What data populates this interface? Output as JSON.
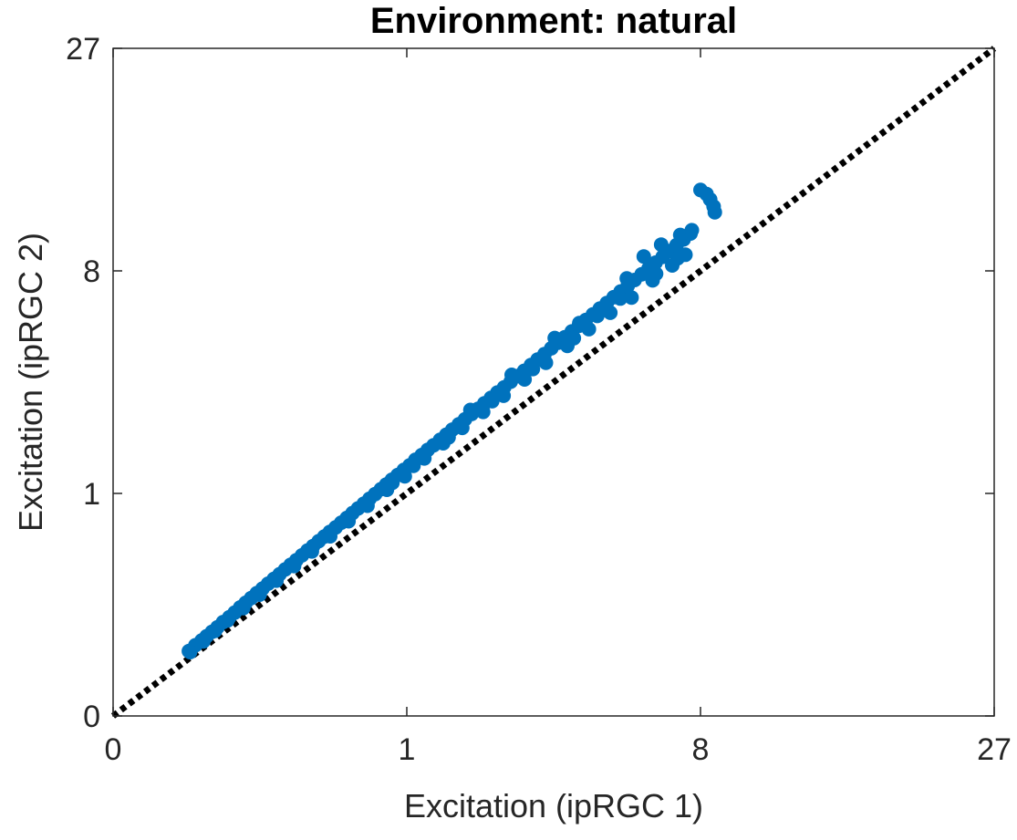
{
  "chart_data": {
    "type": "scatter",
    "title": "Environment: natural",
    "xlabel": "Excitation (ipRGC 1)",
    "ylabel": "Excitation (ipRGC 2)",
    "scale": "cube-root",
    "xlim": [
      0,
      27
    ],
    "ylim": [
      0,
      27
    ],
    "xticks": [
      {
        "value": 0,
        "label": "0"
      },
      {
        "value": 1,
        "label": "1"
      },
      {
        "value": 8,
        "label": "8"
      },
      {
        "value": 27,
        "label": "27"
      }
    ],
    "yticks": [
      {
        "value": 0,
        "label": "0"
      },
      {
        "value": 1,
        "label": "1"
      },
      {
        "value": 8,
        "label": "8"
      },
      {
        "value": 27,
        "label": "27"
      }
    ],
    "grid": false,
    "legend": "none",
    "reference_line": {
      "style": "dotted",
      "color": "#000000",
      "x": [
        0,
        27
      ],
      "y": [
        0,
        27
      ]
    },
    "series": [
      {
        "color": "#0072BD",
        "points": [
          [
            0.0172,
            0.0247
          ],
          [
            0.022,
            0.032
          ],
          [
            0.0274,
            0.0389
          ],
          [
            0.0323,
            0.0459
          ],
          [
            0.0383,
            0.0542
          ],
          [
            0.045,
            0.0635
          ],
          [
            0.0524,
            0.0751
          ],
          [
            0.062,
            0.0873
          ],
          [
            0.071,
            0.1
          ],
          [
            0.081,
            0.116
          ],
          [
            0.092,
            0.1316
          ],
          [
            0.104,
            0.1488
          ],
          [
            0.117,
            0.168
          ],
          [
            0.1317,
            0.1873
          ],
          [
            0.147,
            0.2097
          ],
          [
            0.164,
            0.2331
          ],
          [
            0.182,
            0.2584
          ],
          [
            0.201,
            0.2854
          ],
          [
            0.221,
            0.314
          ],
          [
            0.2428,
            0.343
          ],
          [
            0.266,
            0.376
          ],
          [
            0.29,
            0.411
          ],
          [
            0.316,
            0.445
          ],
          [
            0.343,
            0.484
          ],
          [
            0.372,
            0.524
          ],
          [
            0.402,
            0.566
          ],
          [
            0.435,
            0.608
          ],
          [
            0.468,
            0.655
          ],
          [
            0.504,
            0.704
          ],
          [
            0.541,
            0.757
          ],
          [
            0.58,
            0.811
          ],
          [
            0.622,
            0.869
          ],
          [
            0.665,
            0.929
          ],
          [
            0.71,
            0.992
          ],
          [
            0.758,
            1.057
          ],
          [
            0.805,
            1.125
          ],
          [
            0.855,
            1.196
          ],
          [
            0.91,
            1.268
          ],
          [
            0.97,
            1.35
          ],
          [
            1.03,
            1.429
          ],
          [
            1.09,
            1.525
          ],
          [
            1.16,
            1.61
          ],
          [
            1.23,
            1.71
          ],
          [
            1.3,
            1.8
          ],
          [
            1.38,
            1.91
          ],
          [
            1.46,
            2.02
          ],
          [
            1.54,
            2.13
          ],
          [
            1.63,
            2.25
          ],
          [
            1.72,
            2.37
          ],
          [
            1.82,
            2.5
          ],
          [
            1.92,
            2.63
          ],
          [
            2.02,
            2.77
          ],
          [
            2.13,
            2.92
          ],
          [
            2.24,
            3.07
          ],
          [
            2.36,
            3.22
          ],
          [
            2.48,
            3.39
          ],
          [
            2.61,
            3.56
          ],
          [
            2.74,
            3.73
          ],
          [
            2.88,
            3.92
          ],
          [
            3.02,
            4.11
          ],
          [
            3.17,
            4.3
          ],
          [
            3.32,
            4.51
          ],
          [
            3.48,
            4.72
          ],
          [
            3.64,
            4.93
          ],
          [
            3.81,
            5.16
          ],
          [
            3.99,
            5.39
          ],
          [
            4.17,
            5.63
          ],
          [
            4.36,
            5.87
          ],
          [
            4.55,
            6.13
          ],
          [
            4.75,
            6.39
          ],
          [
            4.95,
            6.66
          ],
          [
            5.16,
            6.94
          ],
          [
            5.38,
            7.22
          ],
          [
            5.6,
            7.52
          ],
          [
            5.83,
            7.82
          ],
          [
            6.06,
            8.13
          ],
          [
            6.3,
            8.45
          ],
          [
            6.55,
            8.78
          ],
          [
            6.8,
            9.12
          ],
          [
            7.06,
            9.47
          ],
          [
            7.33,
            9.82
          ],
          [
            7.6,
            10.19
          ],
          [
            0.018,
            0.0236
          ],
          [
            0.029,
            0.0377
          ],
          [
            0.042,
            0.056
          ],
          [
            0.059,
            0.079
          ],
          [
            0.087,
            0.114
          ],
          [
            0.124,
            0.162
          ],
          [
            0.172,
            0.225
          ],
          [
            0.234,
            0.306
          ],
          [
            0.31,
            0.404
          ],
          [
            0.404,
            0.526
          ],
          [
            0.515,
            0.67
          ],
          [
            0.65,
            0.843
          ],
          [
            0.81,
            1.05
          ],
          [
            0.98,
            1.25
          ],
          [
            1.19,
            1.55
          ],
          [
            1.42,
            1.84
          ],
          [
            1.68,
            2.17
          ],
          [
            2.0,
            2.55
          ],
          [
            2.35,
            2.98
          ],
          [
            2.75,
            3.46
          ],
          [
            3.2,
            4.0
          ],
          [
            3.7,
            4.6
          ],
          [
            4.25,
            5.25
          ],
          [
            4.85,
            5.95
          ],
          [
            5.5,
            6.65
          ],
          [
            6.2,
            7.5
          ],
          [
            6.9,
            8.3
          ],
          [
            7.4,
            8.9
          ],
          [
            0.86,
            1.15
          ],
          [
            1.07,
            1.42
          ],
          [
            1.49,
            1.96
          ],
          [
            2.15,
            2.83
          ],
          [
            2.92,
            3.79
          ],
          [
            3.86,
            4.89
          ],
          [
            4.48,
            5.81
          ],
          [
            5.15,
            6.6
          ],
          [
            5.35,
            7.6
          ],
          [
            4.6,
            6.05
          ],
          [
            6.32,
            7.85
          ],
          [
            7.1,
            8.7
          ],
          [
            7.2,
            10.1
          ],
          [
            7.65,
            10.4
          ],
          [
            6.5,
            9.5
          ],
          [
            5.9,
            8.8
          ],
          [
            4.0,
            5.5
          ],
          [
            3.4,
            4.9
          ],
          [
            2.5,
            3.6
          ],
          [
            1.8,
            2.6
          ],
          [
            8.0,
            13.2
          ],
          [
            8.25,
            12.9
          ],
          [
            8.4,
            12.5
          ],
          [
            8.55,
            12.0
          ],
          [
            8.6,
            11.6
          ]
        ]
      }
    ]
  }
}
